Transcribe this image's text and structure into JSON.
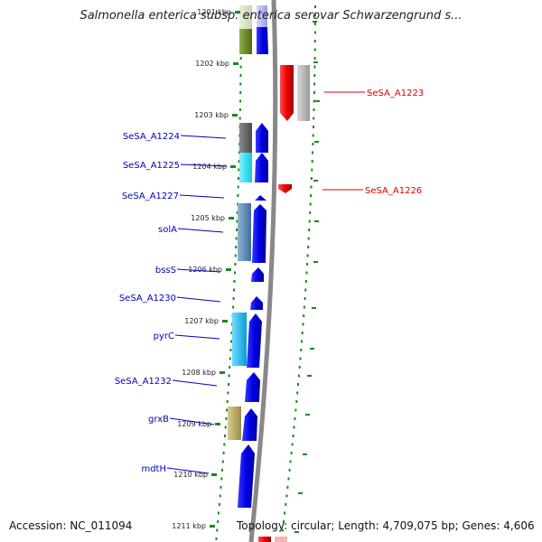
{
  "title": "Salmonella enterica subsp. enterica serovar Schwarzengrund s...",
  "footer": {
    "accession": "Accession: NC_011094",
    "summary": "Topology: circular; Length: 4,709,075 bp; Genes: 4,606"
  },
  "ticks": [
    "1201 kbp",
    "1202 kbp",
    "1203 kbp",
    "1204 kbp",
    "1205 kbp",
    "1206 kbp",
    "1207 kbp",
    "1208 kbp",
    "1209 kbp",
    "1210 kbp",
    "1211 kbp"
  ],
  "genes_left": [
    "SeSA_A1224",
    "SeSA_A1225",
    "SeSA_A1227",
    "solA",
    "bssS",
    "SeSA_A1230",
    "pyrC",
    "SeSA_A1232",
    "grxB",
    "mdtH"
  ],
  "genes_right": [
    "SeSA_A1223",
    "SeSA_A1226"
  ],
  "colors": {
    "forward": "#0000ee",
    "reverse": "#ee0000",
    "tick": "#1a8a1a",
    "backbone": "#888888",
    "label_left": "#0000bb",
    "label_right": "#dd0000"
  }
}
